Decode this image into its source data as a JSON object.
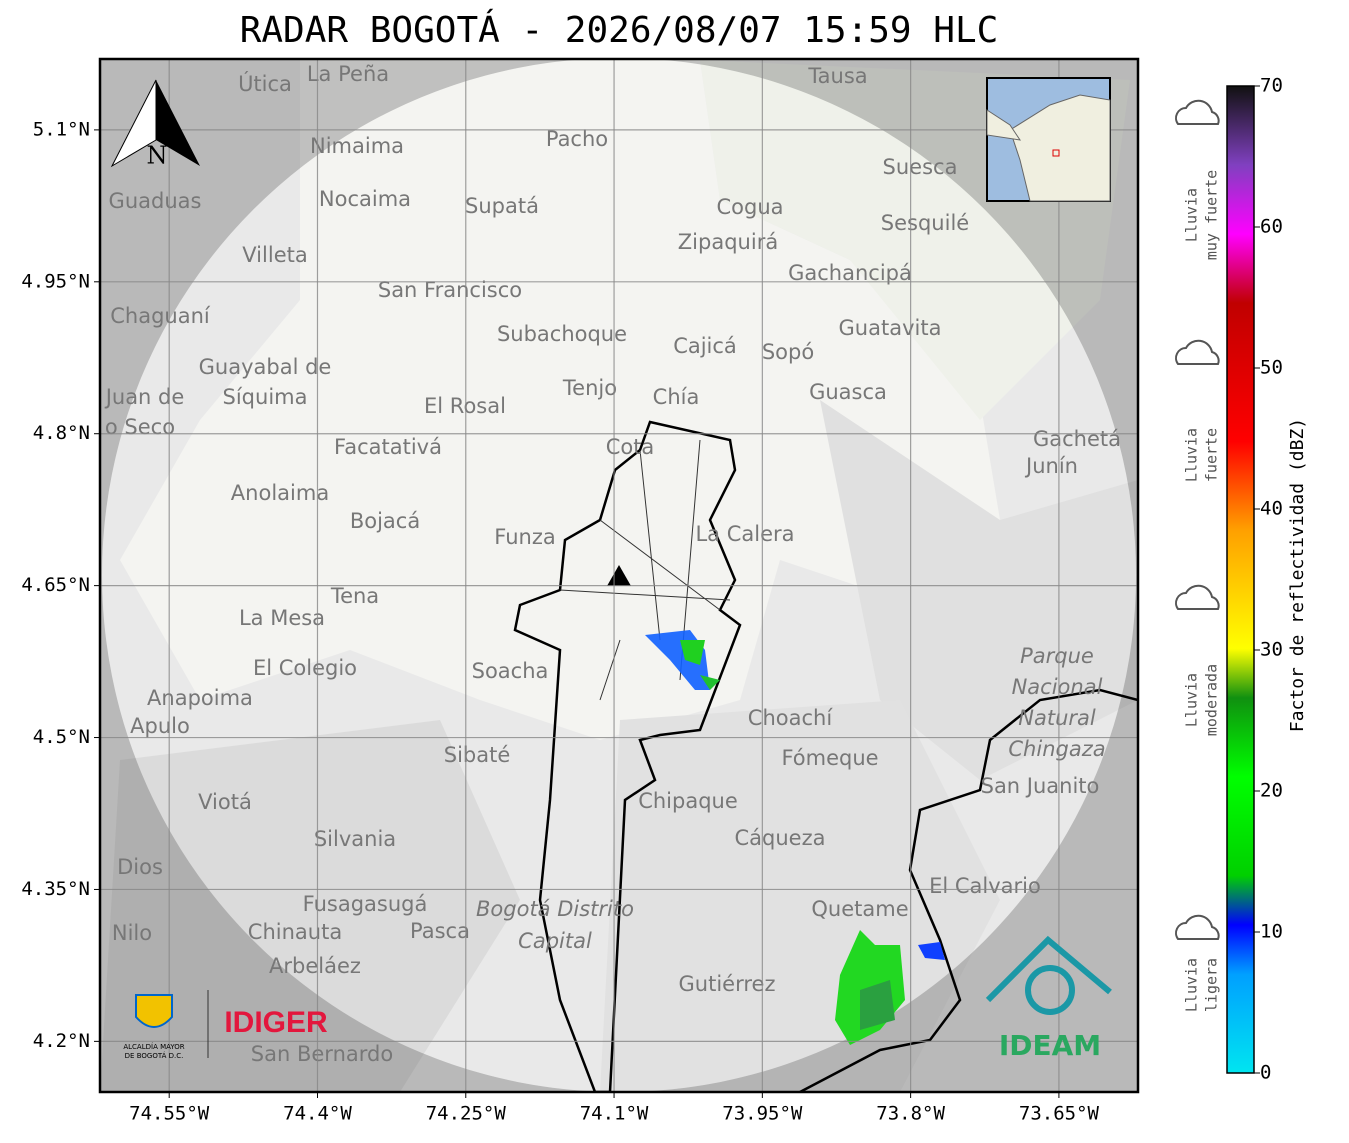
{
  "title": "RADAR BOGOTÁ - 2026/08/07 15:59 HLC",
  "map": {
    "xlim": [
      -74.62,
      -73.57
    ],
    "ylim": [
      4.15,
      5.17
    ],
    "xticks": [
      {
        "value": -74.55,
        "label": "74.55°W"
      },
      {
        "value": -74.4,
        "label": "74.4°W"
      },
      {
        "value": -74.25,
        "label": "74.25°W"
      },
      {
        "value": -74.1,
        "label": "74.1°W"
      },
      {
        "value": -73.95,
        "label": "73.95°W"
      },
      {
        "value": -73.8,
        "label": "73.8°W"
      },
      {
        "value": -73.65,
        "label": "73.65°W"
      }
    ],
    "yticks": [
      {
        "value": 4.2,
        "label": "4.2°N"
      },
      {
        "value": 4.35,
        "label": "4.35°N"
      },
      {
        "value": 4.5,
        "label": "4.5°N"
      },
      {
        "value": 4.65,
        "label": "4.65°N"
      },
      {
        "value": 4.8,
        "label": "4.8°N"
      },
      {
        "value": 4.95,
        "label": "4.95°N"
      },
      {
        "value": 5.1,
        "label": "5.1°N"
      }
    ],
    "grid": true,
    "north": "N",
    "places": [
      "La Peña",
      "Útica",
      "Tausa",
      "Pacho",
      "Nimaima",
      "Nocaima",
      "Supatá",
      "Guaduas",
      "Cogua",
      "Suesca",
      "Sesquilé",
      "Zipaquirá",
      "Villeta",
      "Gachancipá",
      "San Francisco",
      "Chaguaní",
      "Guatavita",
      "Subachoque",
      "Cajicá",
      "Sopó",
      "Guayabal de",
      "Síquima",
      "Tenjo",
      "Guasca",
      "El Rosal",
      "Chía",
      "Facatativá",
      "Gachetá",
      "Junín",
      "Anolaima",
      "Bojacá",
      "Funza",
      "La Calera",
      "Tena",
      "La Mesa",
      "El Colegio",
      "Soacha",
      "Parque",
      "Nacional",
      "Natural",
      "Chingaza",
      "Anapoima",
      "Choachí",
      "Apulo",
      "Sibaté",
      "Fómeque",
      "San Juanito",
      "Viotá",
      "Chipaque",
      "Silvania",
      "Cáqueza",
      "Dios",
      "El Calvario",
      "Fusagasugá",
      "Quetame",
      "Chinauta",
      "Pasca",
      "Nilo",
      "Arbeláez",
      "Gutiérrez",
      "San Bernardo",
      "Bogotá Distrito",
      "Capital",
      "Cota",
      "Juan de",
      "o Seco"
    ]
  },
  "colorbar": {
    "label": "Factor de reflectividad (dBZ)",
    "lim": [
      0,
      70
    ],
    "ticks": [
      0,
      10,
      20,
      30,
      40,
      50,
      60,
      70
    ]
  },
  "rain_levels": [
    [
      "Lluvia",
      "muy fuerte"
    ],
    [
      "Lluvia",
      "fuerte"
    ],
    [
      "Lluvia",
      "moderada"
    ],
    [
      "Lluvia",
      "ligera"
    ]
  ],
  "logos": {
    "idiger": "IDIGER",
    "ideam": "IDEAM",
    "alcaldia": [
      "ALCALDÍA MAYOR",
      "DE BOGOTÁ D.C."
    ]
  }
}
